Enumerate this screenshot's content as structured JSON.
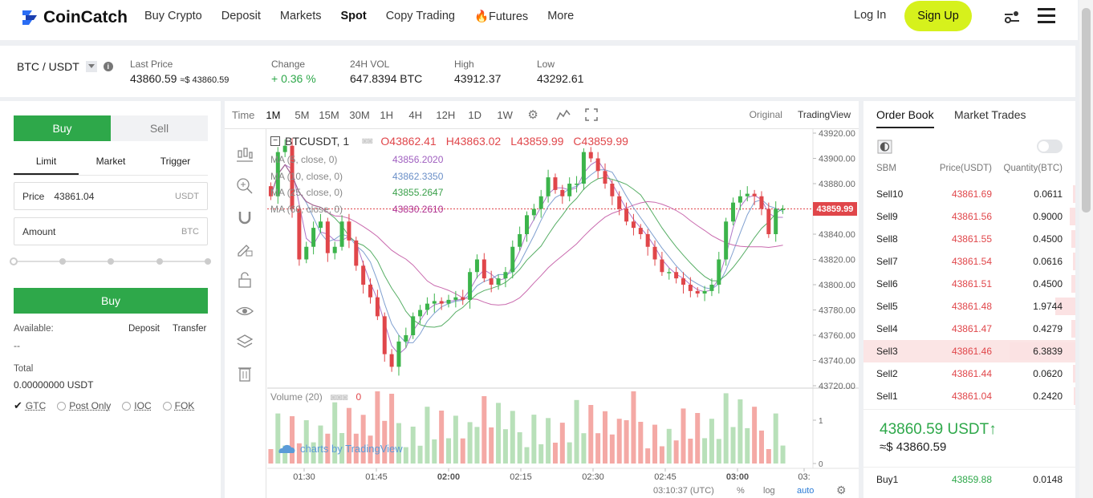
{
  "nav": {
    "brand": "CoinCatch",
    "links": [
      "Buy Crypto",
      "Deposit",
      "Markets",
      "Spot",
      "Copy Trading",
      "Futures",
      "More"
    ],
    "active": "Spot",
    "login": "Log In",
    "signup": "Sign Up",
    "futures_prefix": "🔥"
  },
  "ticker": {
    "pair": "BTC / USDT",
    "last_price_label": "Last Price",
    "last_price": "43860.59",
    "last_price_usd": "≈$ 43860.59",
    "change_label": "Change",
    "change": "+ 0.36 %",
    "vol_label": "24H VOL",
    "vol": "647.8394 BTC",
    "high_label": "High",
    "high": "43912.37",
    "low_label": "Low",
    "low": "43292.61"
  },
  "order_form": {
    "buy_tab": "Buy",
    "sell_tab": "Sell",
    "types": [
      "Limit",
      "Market",
      "Trigger"
    ],
    "price_label": "Price",
    "price_value": "43861.04",
    "price_unit": "USDT",
    "amount_label": "Amount",
    "amount_unit": "BTC",
    "submit": "Buy",
    "available_label": "Available:",
    "available_value": "--",
    "deposit": "Deposit",
    "transfer": "Transfer",
    "total_label": "Total",
    "total_value": "0.00000000 USDT",
    "tif": [
      "GTC",
      "Post Only",
      "IOC",
      "FOK"
    ],
    "tif_selected": "GTC"
  },
  "chart_toolbar": {
    "time_label": "Time",
    "intervals": [
      "1M",
      "5M",
      "15M",
      "30M",
      "1H",
      "4H",
      "12H",
      "1D",
      "1W"
    ],
    "views": [
      "Original",
      "TradingView"
    ]
  },
  "chart_legend": {
    "symbol": "BTCUSDT, 1",
    "o": "O43862.41",
    "h": "H43863.02",
    "l": "L43859.99",
    "c": "C43859.99",
    "ma1_label": "MA (5, close, 0)",
    "ma1_value": "43856.2020",
    "ma2_label": "MA (10, close, 0)",
    "ma2_value": "43862.3350",
    "ma3_label": "MA (25, close, 0)",
    "ma3_value": "43855.2647",
    "ma4_label": "MA (60, close, 0)",
    "ma4_value": "43830.2610",
    "volume_label": "Volume (20)",
    "volume_value": "0",
    "watermark": "charts by TradingView",
    "current_price": "43859.99",
    "clock": "03:10:37 (UTC)",
    "pct": "%",
    "log": "log",
    "auto": "auto"
  },
  "chart_data": {
    "type": "candlestick",
    "price_ticks": [
      "43920.00",
      "43900.00",
      "43880.00",
      "43860.00",
      "43840.00",
      "43820.00",
      "43800.00",
      "43780.00",
      "43760.00",
      "43740.00",
      "43720.00"
    ],
    "volume_ticks": [
      "1",
      "0"
    ],
    "x_ticks": [
      "01:30",
      "01:45",
      "02:00",
      "02:15",
      "02:30",
      "02:45",
      "03:00",
      "03:"
    ],
    "ylim": [
      43720,
      43920
    ],
    "closes": [
      43870,
      43905,
      43910,
      43860,
      43820,
      43830,
      43845,
      43850,
      43825,
      43830,
      43850,
      43835,
      43815,
      43800,
      43790,
      43775,
      43745,
      43735,
      43755,
      43760,
      43775,
      43780,
      43785,
      43787,
      43785,
      43788,
      43790,
      43788,
      43810,
      43820,
      43805,
      43800,
      43805,
      43810,
      43830,
      43840,
      43855,
      43860,
      43870,
      43885,
      43875,
      43870,
      43880,
      43880,
      43905,
      43900,
      43890,
      43880,
      43870,
      43860,
      43850,
      43845,
      43840,
      43830,
      43820,
      43810,
      43810,
      43805,
      43800,
      43795,
      43793,
      43795,
      43800,
      43820,
      43850,
      43865,
      43870,
      43872,
      43870,
      43860,
      43840,
      43860,
      43860
    ]
  },
  "order_book": {
    "tabs": [
      "Order Book",
      "Market Trades"
    ],
    "headers": [
      "SBM",
      "Price(USDT)",
      "Quantity(BTC)"
    ],
    "sells": [
      {
        "label": "Sell10",
        "price": "43861.69",
        "qty": "0.0611",
        "depth": 0.04
      },
      {
        "label": "Sell9",
        "price": "43861.56",
        "qty": "0.9000",
        "depth": 0.08
      },
      {
        "label": "Sell8",
        "price": "43861.55",
        "qty": "0.4500",
        "depth": 0.06
      },
      {
        "label": "Sell7",
        "price": "43861.54",
        "qty": "0.0616",
        "depth": 0.04
      },
      {
        "label": "Sell6",
        "price": "43861.51",
        "qty": "0.4500",
        "depth": 0.06
      },
      {
        "label": "Sell5",
        "price": "43861.48",
        "qty": "1.9744",
        "depth": 0.31
      },
      {
        "label": "Sell4",
        "price": "43861.47",
        "qty": "0.4279",
        "depth": 0.06
      },
      {
        "label": "Sell3",
        "price": "43861.46",
        "qty": "6.3839",
        "depth": 1.0
      },
      {
        "label": "Sell2",
        "price": "43861.44",
        "qty": "0.0620",
        "depth": 0.04
      },
      {
        "label": "Sell1",
        "price": "43861.04",
        "qty": "0.2420",
        "depth": 0.03
      }
    ],
    "mid_price": "43860.59 USDT",
    "mid_arrow": "↑",
    "mid_usd": "≈$ 43860.59",
    "buys": [
      {
        "label": "Buy1",
        "price": "43859.88",
        "qty": "0.0148"
      }
    ]
  }
}
